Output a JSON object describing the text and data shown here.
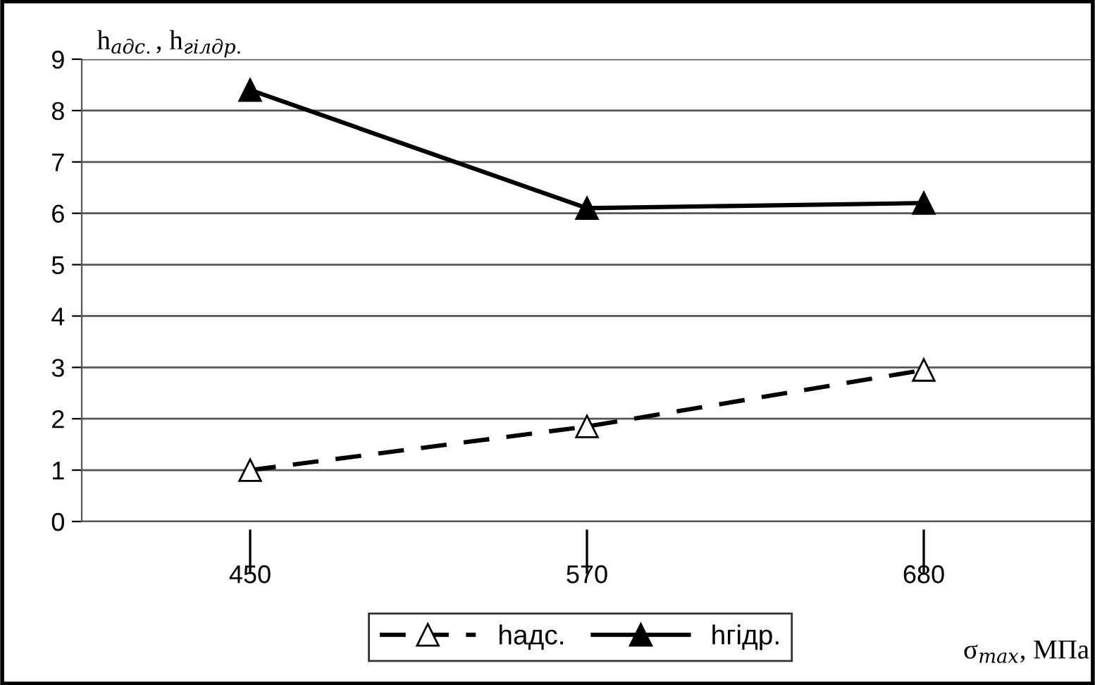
{
  "chart_data": {
    "type": "line",
    "ylabel": "h$_{адс.}$, h$_{гілдр.}$",
    "xlabel": "σ$_{max}$, МПа",
    "categories": [
      "450",
      "570",
      "680"
    ],
    "series": [
      {
        "name": "hадс.",
        "color": "#000000",
        "values": [
          1.0,
          1.85,
          2.95
        ],
        "line_style": "dashed"
      },
      {
        "name": "hгідр.",
        "color": "#000000",
        "values": [
          8.4,
          6.1,
          6.2
        ],
        "line_style": "solid"
      }
    ],
    "marker": "triangle",
    "ylim": [
      0,
      9
    ],
    "yticks": [
      0,
      1,
      2,
      3,
      4,
      5,
      6,
      7,
      8,
      9
    ],
    "grid": "y",
    "legend": "bottom"
  }
}
